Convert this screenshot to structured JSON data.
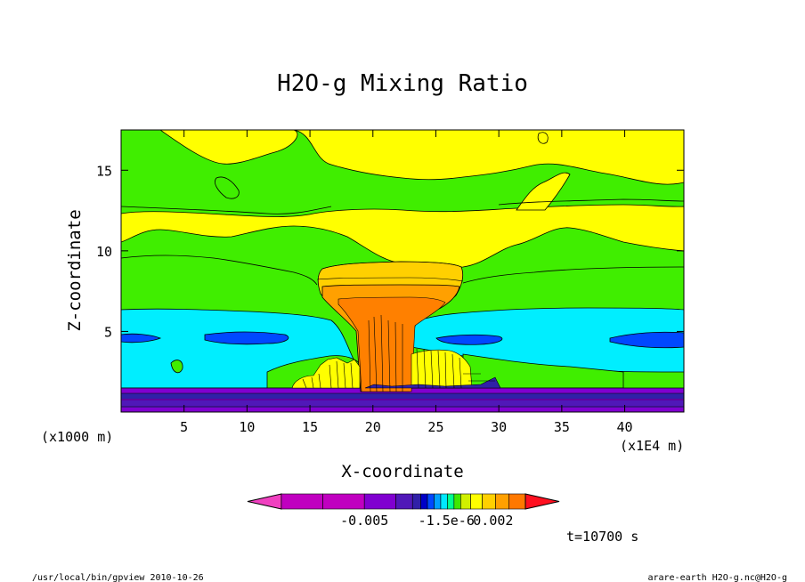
{
  "chart_data": {
    "type": "heatmap",
    "title": "H2O-g Mixing Ratio",
    "xlabel": "X-coordinate",
    "ylabel": "Z-coordinate",
    "x_unit": "(x1E4 m)",
    "y_unit": "(x1000 m)",
    "x_ticks": [
      5,
      10,
      15,
      20,
      25,
      30,
      35,
      40
    ],
    "y_ticks": [
      5,
      10,
      15
    ],
    "xlim": [
      0,
      44.7
    ],
    "ylim": [
      0,
      17.5
    ],
    "legend_labels": [
      "-0.005",
      "-1.5e-6",
      "0.002"
    ],
    "legend_colors": [
      "#f040c0",
      "#c000c0",
      "#c000c0",
      "#8000d0",
      "#5018b8",
      "#3020a8",
      "#0000c8",
      "#0048ff",
      "#00a0ff",
      "#00e8ff",
      "#00ff90",
      "#40e800",
      "#d0f000",
      "#ffff00",
      "#ffd000",
      "#ffa000",
      "#ff7800",
      "#ff1020"
    ],
    "fill_colors": {
      "violet": "#8000d0",
      "indigo": "#3020a8",
      "purple_dark": "#5018b8",
      "blue": "#0048ff",
      "cyan": "#00eeff",
      "green": "#40ee00",
      "yellow": "#ffff00",
      "yellow_orange": "#ffd000",
      "orange_light": "#ffa000",
      "orange": "#ff8000"
    }
  },
  "annotations": {
    "time": "t=10700 s",
    "program": "/usr/local/bin/gpview  2010-10-26",
    "source": "arare-earth_H2O-g.nc@H2O-g"
  }
}
